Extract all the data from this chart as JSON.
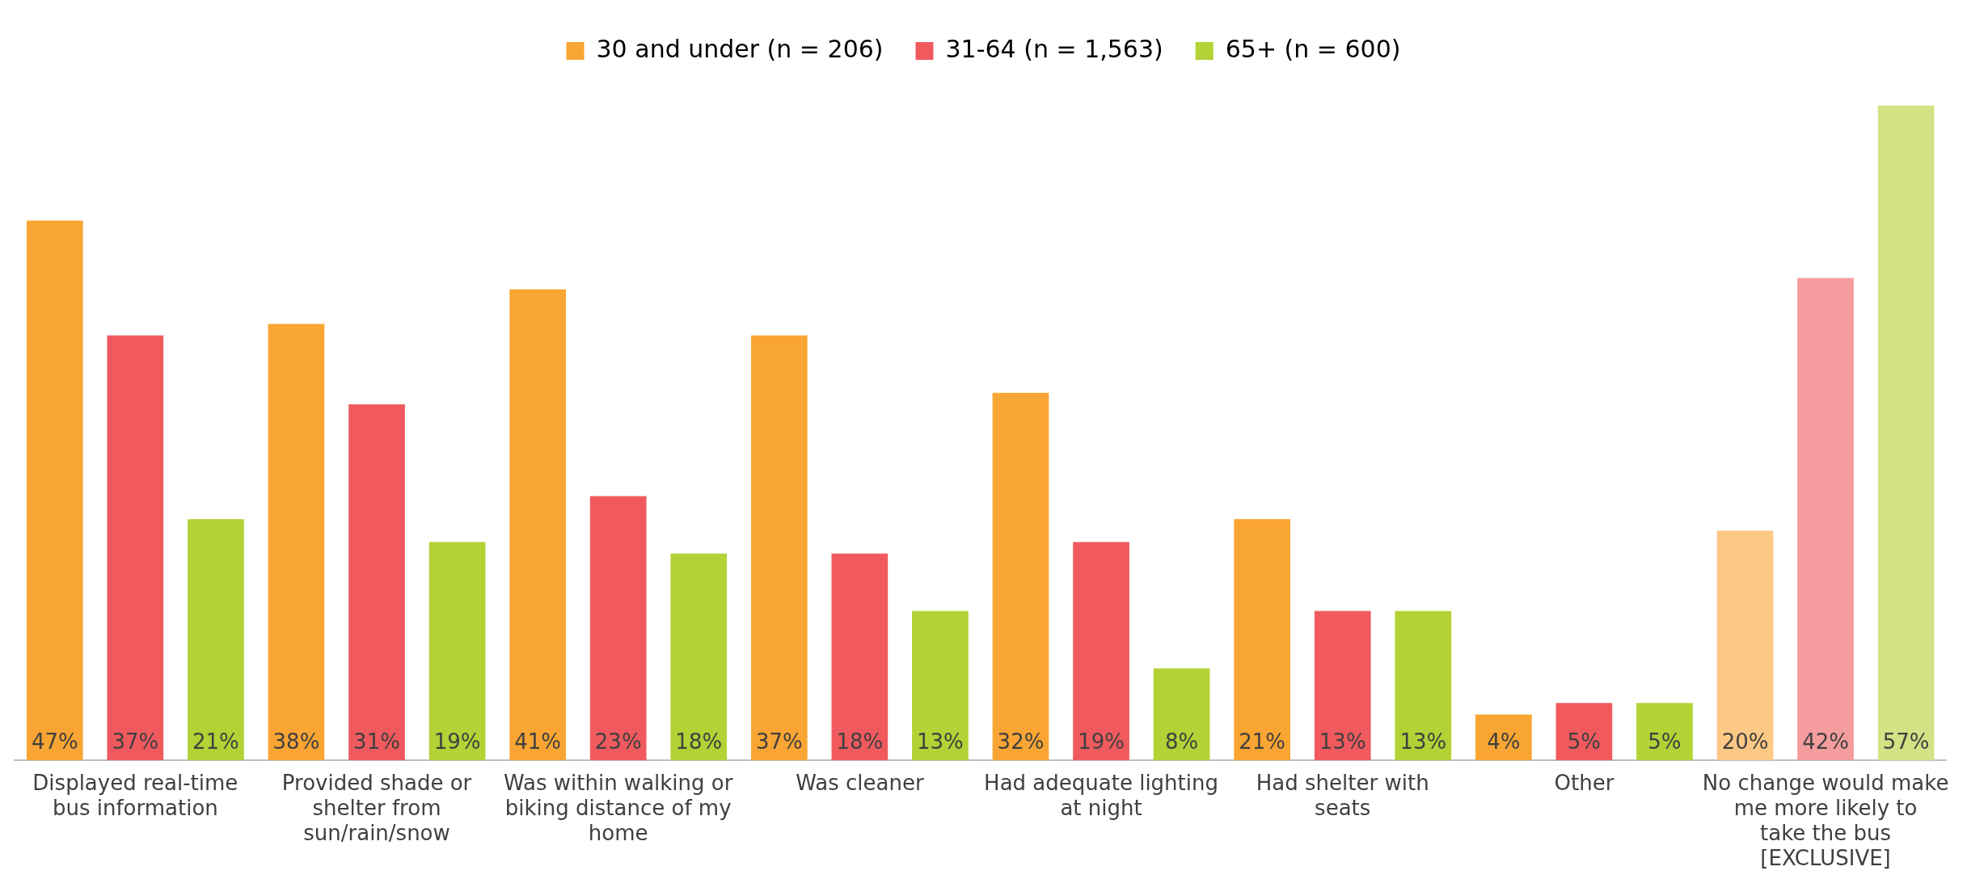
{
  "chart_data": {
    "type": "bar",
    "categories": [
      "Displayed real-time bus information",
      "Provided shade or shelter from sun/rain/snow",
      "Was within walking or biking distance of my home",
      "Was cleaner",
      "Had adequate lighting at night",
      "Had shelter with seats",
      "Other",
      "No change would make me more likely to take the bus [EXCLUSIVE]"
    ],
    "series": [
      {
        "name": "30 and under (n = 206)",
        "color": "#f9a533",
        "colors": [
          "#f9a533",
          "#f9a533",
          "#f9a533",
          "#f9a533",
          "#f9a533",
          "#f9a533",
          "#f9a533",
          "#fcc885"
        ],
        "values": [
          47,
          38,
          41,
          37,
          32,
          21,
          4,
          20
        ],
        "value_labels": [
          "47%",
          "38%",
          "41%",
          "37%",
          "32%",
          "21%",
          "4%",
          "20%"
        ]
      },
      {
        "name": "31-64 (n = 1,563)",
        "color": "#f05a5e",
        "colors": [
          "#f05a5e",
          "#f05a5e",
          "#f05a5e",
          "#f05a5e",
          "#f05a5e",
          "#f05a5e",
          "#f05a5e",
          "#f59c9e"
        ],
        "values": [
          37,
          31,
          23,
          18,
          19,
          13,
          5,
          42
        ],
        "value_labels": [
          "37%",
          "31%",
          "23%",
          "18%",
          "19%",
          "13%",
          "5%",
          "42%"
        ]
      },
      {
        "name": "65+ (n = 600)",
        "color": "#b2d235",
        "colors": [
          "#b2d235",
          "#b2d235",
          "#b2d235",
          "#b2d235",
          "#b2d235",
          "#b2d235",
          "#b2d235",
          "#d1e384"
        ],
        "values": [
          21,
          19,
          18,
          13,
          8,
          13,
          5,
          57
        ],
        "value_labels": [
          "21%",
          "19%",
          "18%",
          "13%",
          "8%",
          "13%",
          "5%",
          "57%"
        ]
      }
    ],
    "legend": "top"
  }
}
